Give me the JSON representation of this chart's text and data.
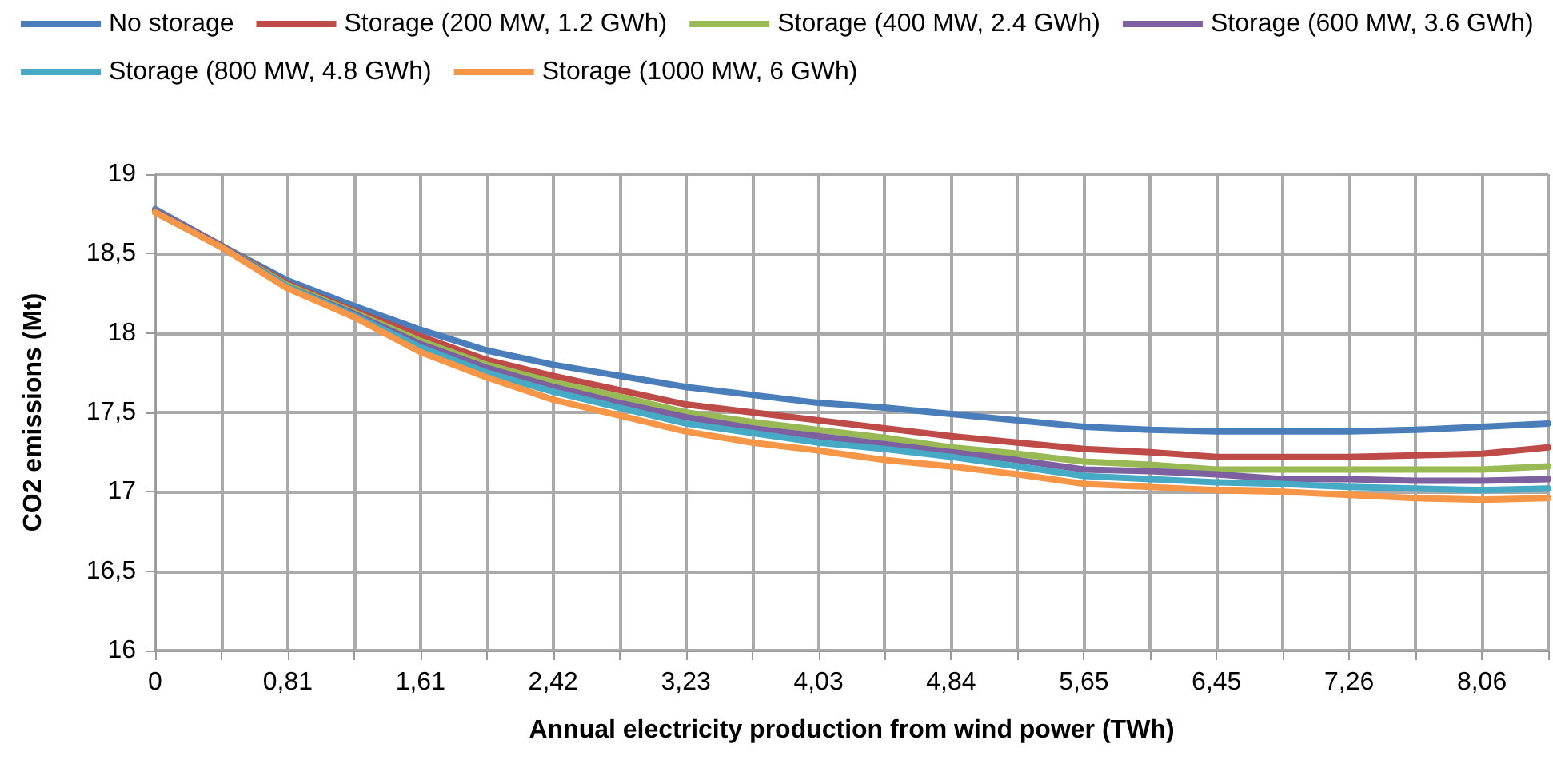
{
  "chart_data": {
    "type": "line",
    "xlabel": "Annual electricity production from wind power (TWh)",
    "ylabel": "CO2 emissions (Mt)",
    "categories": [
      "0",
      null,
      "0,81",
      null,
      "1,61",
      null,
      "2,42",
      null,
      "3,23",
      null,
      "4,03",
      null,
      "4,84",
      null,
      "5,65",
      null,
      "6,45",
      null,
      "7,26",
      null,
      "8,06",
      null
    ],
    "ylim": [
      16,
      19
    ],
    "yticks": [
      16,
      {
        "value": 16.5,
        "label": "16,5"
      },
      17,
      {
        "value": 17.5,
        "label": "17,5"
      },
      18,
      {
        "value": 18.5,
        "label": "18,5"
      },
      19
    ],
    "grid": true,
    "legend": "top",
    "marker": "none",
    "line_style": "solid",
    "series": [
      {
        "name": "No storage",
        "color": "#4a7ebb",
        "values": [
          18.78,
          18.55,
          18.33,
          18.17,
          18.02,
          17.89,
          17.8,
          17.73,
          17.66,
          17.61,
          17.56,
          17.53,
          17.49,
          17.45,
          17.41,
          17.39,
          17.38,
          17.38,
          17.38,
          17.39,
          17.41,
          17.43
        ]
      },
      {
        "name": "Storage (200 MW, 1.2 GWh)",
        "color": "#be4b48",
        "values": [
          18.77,
          18.55,
          18.31,
          18.14,
          17.98,
          17.83,
          17.73,
          17.64,
          17.55,
          17.5,
          17.45,
          17.4,
          17.35,
          17.31,
          17.27,
          17.25,
          17.22,
          17.22,
          17.22,
          17.23,
          17.24,
          17.28
        ]
      },
      {
        "name": "Storage (400 MW, 2.4 GWh)",
        "color": "#98b954",
        "values": [
          18.77,
          18.55,
          18.3,
          18.13,
          17.95,
          17.8,
          17.69,
          17.6,
          17.5,
          17.44,
          17.39,
          17.34,
          17.28,
          17.24,
          17.19,
          17.17,
          17.14,
          17.14,
          17.14,
          17.14,
          17.14,
          17.16
        ]
      },
      {
        "name": "Storage (600 MW, 3.6 GWh)",
        "color": "#7d60a0",
        "values": [
          18.77,
          18.55,
          18.29,
          18.12,
          17.93,
          17.78,
          17.66,
          17.56,
          17.47,
          17.4,
          17.35,
          17.3,
          17.25,
          17.2,
          17.14,
          17.13,
          17.11,
          17.08,
          17.08,
          17.07,
          17.07,
          17.08
        ]
      },
      {
        "name": "Storage (800 MW, 4.8 GWh)",
        "color": "#46aac5",
        "values": [
          18.76,
          18.54,
          18.29,
          18.11,
          17.91,
          17.75,
          17.63,
          17.53,
          17.43,
          17.37,
          17.31,
          17.27,
          17.22,
          17.16,
          17.1,
          17.08,
          17.06,
          17.05,
          17.03,
          17.02,
          17.01,
          17.02
        ]
      },
      {
        "name": "Storage (1000 MW, 6 GWh)",
        "color": "#f79646",
        "values": [
          18.76,
          18.54,
          18.28,
          18.1,
          17.88,
          17.72,
          17.58,
          17.48,
          17.38,
          17.31,
          17.26,
          17.2,
          17.16,
          17.11,
          17.05,
          17.03,
          17.01,
          17.0,
          16.98,
          16.96,
          16.95,
          16.96
        ]
      }
    ]
  }
}
